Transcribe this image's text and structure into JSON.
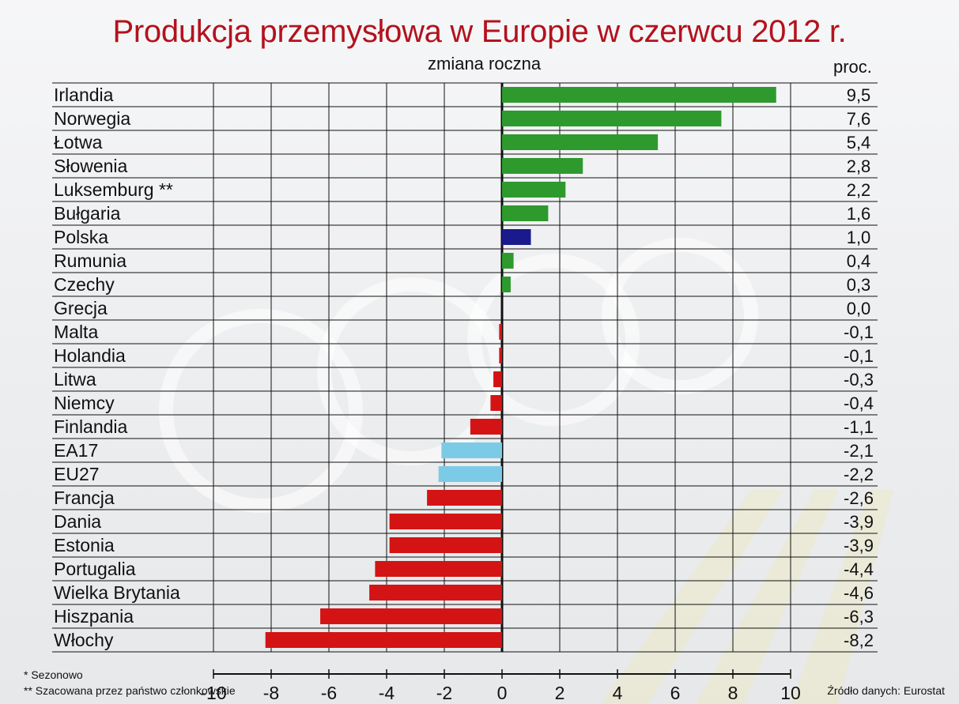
{
  "title": "Produkcja przemysłowa w Europie w czerwcu 2012 r.",
  "subtitle": "zmiana roczna",
  "unit_label": "proc.",
  "footnotes": [
    "* Sezonowo",
    "** Szacowana przez państwo członkowskie"
  ],
  "source": "Źródło danych: Eurostat",
  "colors": {
    "positive": "#2e9a2e",
    "poland": "#1a1a8c",
    "negative": "#d41414",
    "aggregate": "#7ccbe6",
    "title": "#b3121e"
  },
  "chart_data": {
    "type": "bar",
    "orientation": "horizontal",
    "title": "Produkcja przemysłowa w Europie w czerwcu 2012 r.",
    "subtitle": "zmiana roczna",
    "xlim": [
      -10,
      10
    ],
    "xticks": [
      "-10",
      "-8",
      "-6",
      "-4",
      "-2",
      "0",
      "2",
      "4",
      "6",
      "8",
      "10"
    ],
    "grid": true,
    "categories": [
      "Irlandia",
      "Norwegia",
      "Łotwa",
      "Słowenia",
      "Luksemburg **",
      "Bułgaria",
      "Polska",
      "Rumunia",
      "Czechy",
      "Grecja",
      "Malta",
      "Holandia",
      "Litwa",
      "Niemcy",
      "Finlandia",
      "EA17",
      "EU27",
      "Francja",
      "Dania",
      "Estonia",
      "Portugalia",
      "Wielka Brytania",
      "Hiszpania",
      "Włochy"
    ],
    "values": [
      9.5,
      7.6,
      5.4,
      2.8,
      2.2,
      1.6,
      1.0,
      0.4,
      0.3,
      0.0,
      -0.1,
      -0.1,
      -0.3,
      -0.4,
      -1.1,
      -2.1,
      -2.2,
      -2.6,
      -3.9,
      -3.9,
      -4.4,
      -4.6,
      -6.3,
      -8.2
    ],
    "value_labels": [
      "9,5",
      "7,6",
      "5,4",
      "2,8",
      "2,2",
      "1,6",
      "1,0",
      "0,4",
      "0,3",
      "0,0",
      "-0,1",
      "-0,1",
      "-0,3",
      "-0,4",
      "-1,1",
      "-2,1",
      "-2,2",
      "-2,6",
      "-3,9",
      "-3,9",
      "-4,4",
      "-4,6",
      "-6,3",
      "-8,2"
    ],
    "highlight": {
      "Polska": "poland",
      "EA17": "aggregate",
      "EU27": "aggregate"
    }
  }
}
